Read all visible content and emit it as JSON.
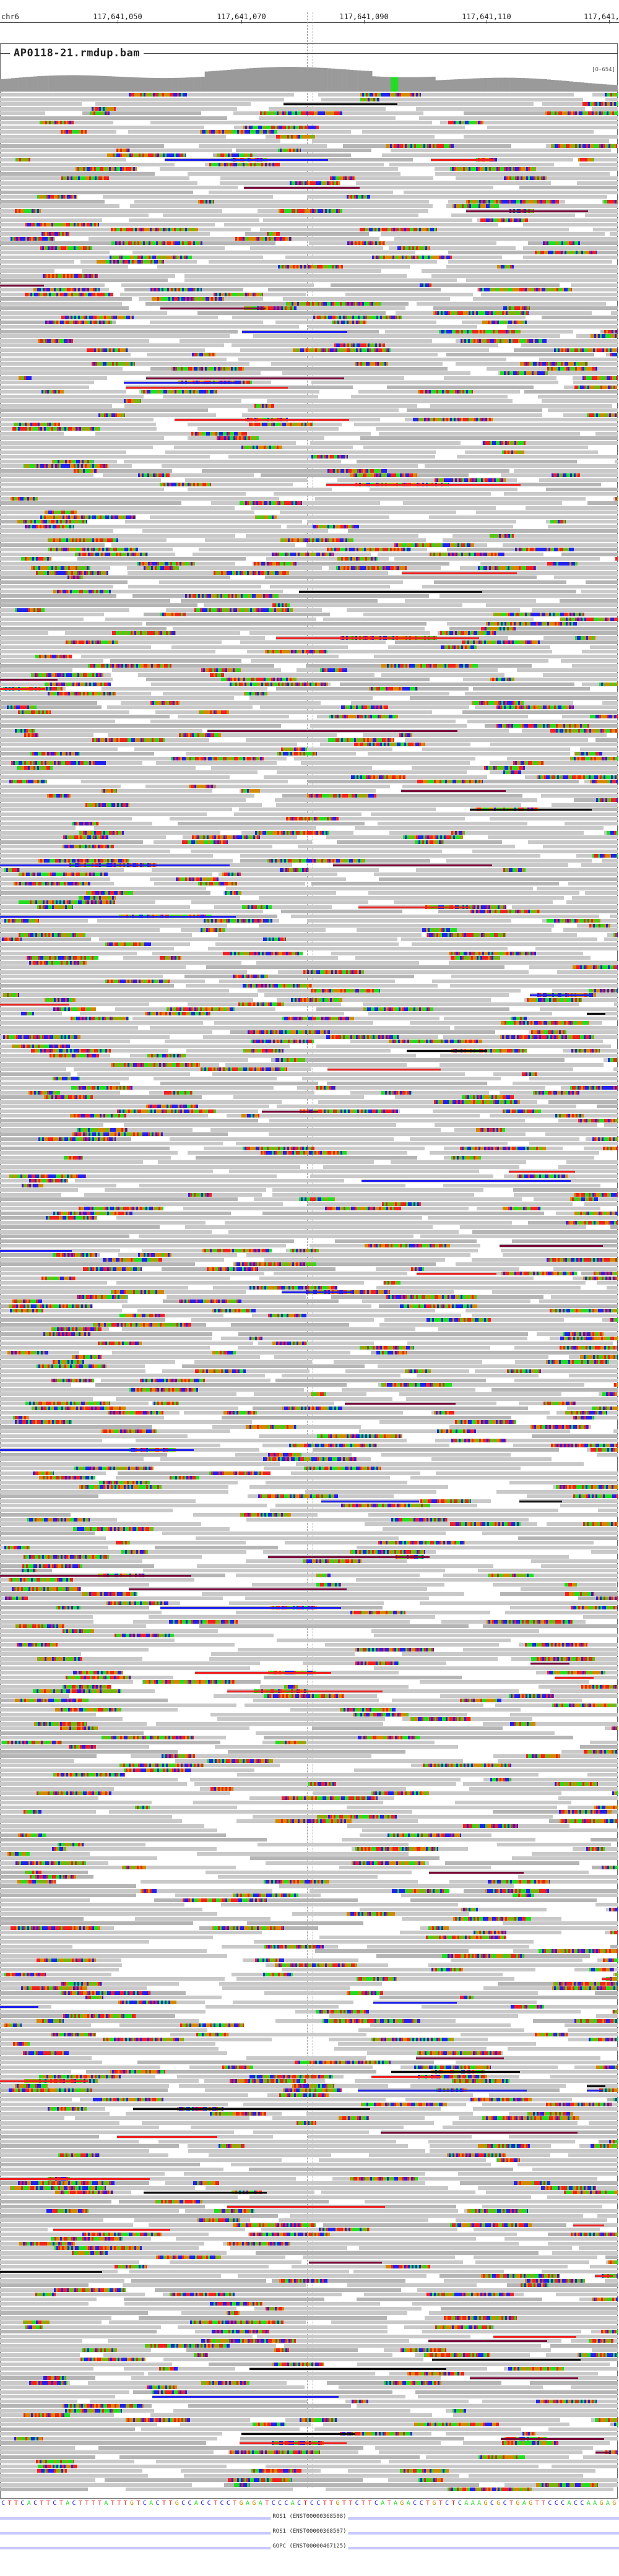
{
  "ruler": {
    "chrom": "chr6",
    "ticks": [
      "117,641,050",
      "117,641,070",
      "117,641,090",
      "117,641,110",
      "117,641,"
    ]
  },
  "track": {
    "title": "AP0118-21.rmdup.bam",
    "coverage_range": "[0-654]"
  },
  "sequence": "CTTCACTTCTACTTTTATTTGTCACTTGCCACCTCCTGAGATCCCACTCCTTGTTCTTCATAGACCTGTCTCAAAGCGCTGAGTTCCCACCAAGAGCAGAA",
  "genes": [
    {
      "label": "ROS1 (ENST00000368508)"
    },
    {
      "label": "ROS1 (ENST00000368507)"
    },
    {
      "label": "GOPC (ENST00000467125)"
    }
  ],
  "colors": {
    "A": "#22dd22",
    "C": "#2222ee",
    "G": "#d18a00",
    "T": "#ee2222",
    "read": "#c9c9c9",
    "coverage": "#9a9a9a"
  }
}
